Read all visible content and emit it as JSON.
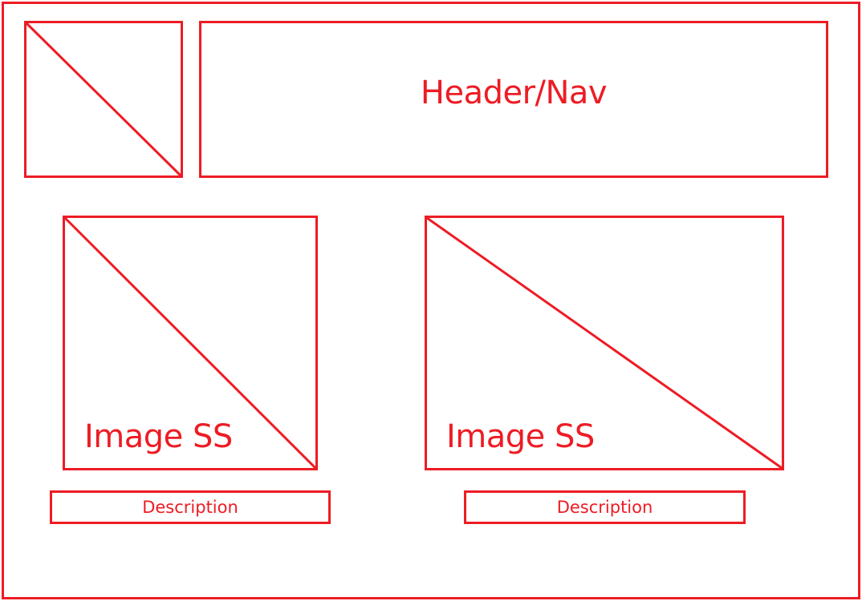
{
  "wireframe": {
    "header": {
      "label": "Header/Nav"
    },
    "logo": {
      "placeholder_icon": "image-placeholder-icon"
    },
    "cards": [
      {
        "image_label": "Image SS",
        "description": "Description"
      },
      {
        "image_label": "Image SS",
        "description": "Description"
      }
    ]
  },
  "colors": {
    "stroke": "#ed1c24",
    "background": "#ffffff"
  }
}
